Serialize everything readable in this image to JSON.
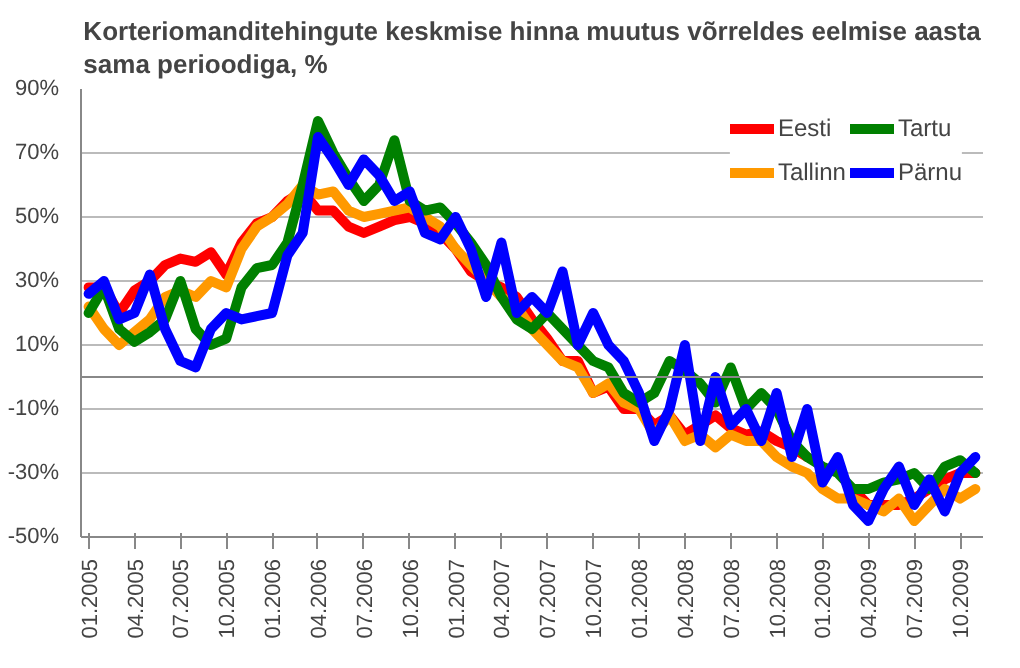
{
  "chart_data": {
    "type": "line",
    "title": "Korteriomanditehingute keskmise hinna muutus võrreldes eelmise aasta sama perioodiga, %",
    "categories": [
      "01.2005",
      null,
      null,
      "04.2005",
      null,
      null,
      "07.2005",
      null,
      null,
      "10.2005",
      null,
      null,
      "01.2006",
      null,
      null,
      "04.2006",
      null,
      null,
      "07.2006",
      null,
      null,
      "10.2006",
      null,
      null,
      "01.2007",
      null,
      null,
      "04.2007",
      null,
      null,
      "07.2007",
      null,
      null,
      "10.2007",
      null,
      null,
      "01.2008",
      null,
      null,
      "04.2008",
      null,
      null,
      "07.2008",
      null,
      null,
      "10.2008",
      null,
      null,
      "01.2009",
      null,
      null,
      "04.2009",
      null,
      null,
      "07.2009",
      null,
      null,
      "10.2009",
      null
    ],
    "series": [
      {
        "name": "Eesti",
        "color": "#ff0000",
        "values": [
          28,
          28,
          20,
          27,
          30,
          35,
          37,
          36,
          39,
          32,
          42,
          48,
          50,
          55,
          58,
          52,
          52,
          47,
          45,
          47,
          49,
          50,
          48,
          45,
          40,
          33,
          30,
          28,
          25,
          18,
          12,
          5,
          5,
          -5,
          -3,
          -10,
          -10,
          -15,
          -12,
          -18,
          -15,
          -12,
          -16,
          -18,
          -17,
          -20,
          -22,
          -25,
          null,
          null,
          -35,
          -40,
          -40,
          -40,
          -38,
          -35,
          -32,
          -30,
          -30
        ]
      },
      {
        "name": "Tallinn",
        "color": "#ff9900",
        "values": [
          22,
          15,
          10,
          14,
          18,
          25,
          27,
          25,
          30,
          28,
          40,
          47,
          50,
          54,
          60,
          57,
          58,
          52,
          50,
          51,
          52,
          53,
          50,
          47,
          40,
          35,
          30,
          25,
          22,
          15,
          10,
          5,
          3,
          -5,
          -2,
          -8,
          -10,
          -18,
          -12,
          -20,
          -18,
          -22,
          -18,
          -20,
          -20,
          -25,
          -28,
          -30,
          -35,
          -38,
          -38,
          -40,
          -42,
          -38,
          -45,
          -40,
          -35,
          -38,
          -35
        ]
      },
      {
        "name": "Tartu",
        "color": "#008000",
        "values": [
          20,
          28,
          15,
          11,
          14,
          18,
          30,
          15,
          10,
          12,
          28,
          34,
          35,
          42,
          60,
          80,
          70,
          62,
          55,
          60,
          74,
          55,
          52,
          53,
          48,
          42,
          35,
          25,
          18,
          15,
          20,
          15,
          10,
          5,
          3,
          -5,
          -8,
          -5,
          5,
          2,
          -2,
          -8,
          3,
          -10,
          -5,
          -10,
          -20,
          -25,
          -28,
          -30,
          -35,
          -35,
          -33,
          -32,
          -30,
          -35,
          -28,
          -26,
          -30
        ]
      },
      {
        "name": "Pärnu",
        "color": "#0000ff",
        "values": [
          26,
          30,
          18,
          20,
          32,
          15,
          5,
          3,
          15,
          20,
          18,
          19,
          20,
          38,
          45,
          75,
          68,
          60,
          68,
          63,
          55,
          58,
          45,
          43,
          50,
          40,
          25,
          42,
          20,
          25,
          20,
          33,
          10,
          20,
          10,
          5,
          -5,
          -20,
          -10,
          10,
          -20,
          0,
          -15,
          -10,
          -20,
          -5,
          -25,
          -10,
          -33,
          -25,
          -40,
          -45,
          -35,
          -28,
          -40,
          -32,
          -42,
          -30,
          -25
        ]
      }
    ],
    "ylim": [
      -50,
      90
    ],
    "yticks": [
      {
        "value": -50,
        "label": "-50%"
      },
      {
        "value": -30,
        "label": "-30%"
      },
      {
        "value": -10,
        "label": "-10%"
      },
      {
        "value": 10,
        "label": "10%"
      },
      {
        "value": 30,
        "label": "30%"
      },
      {
        "value": 50,
        "label": "50%"
      },
      {
        "value": 70,
        "label": "70%"
      },
      {
        "value": 90,
        "label": "90%"
      }
    ],
    "grid": "y",
    "legend": "top right",
    "line_style": "solid"
  }
}
